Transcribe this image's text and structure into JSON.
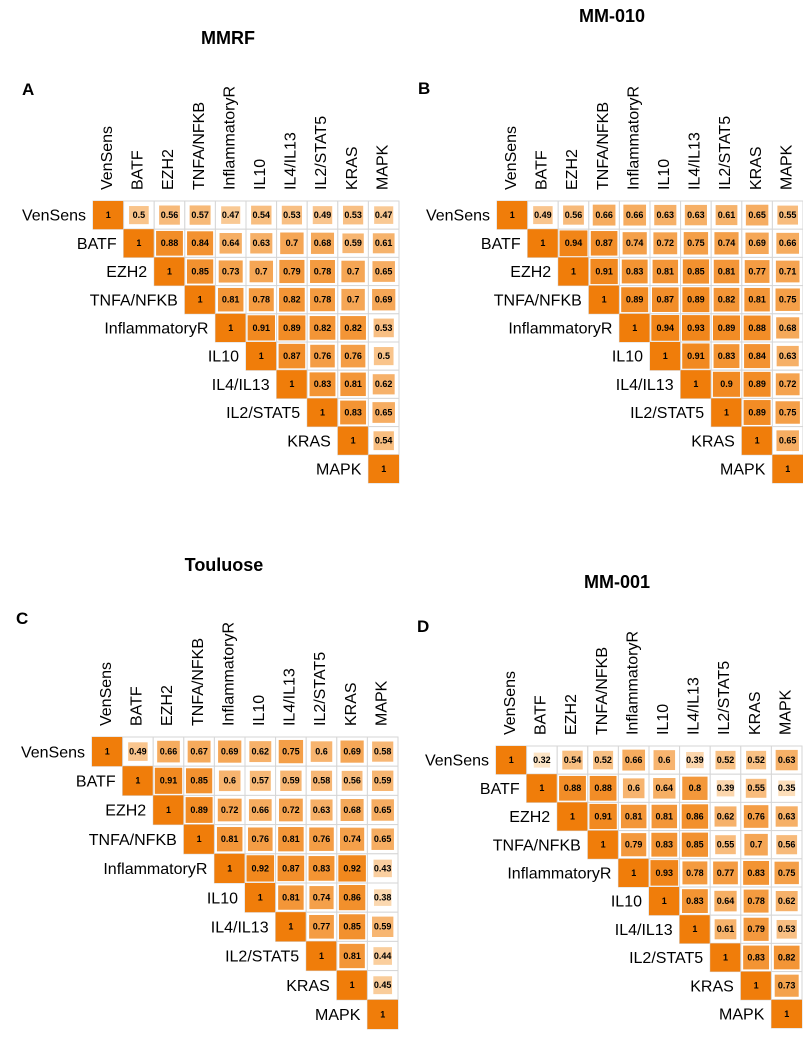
{
  "figure": {
    "panels": [
      {
        "letter": "A",
        "title": "MMRF"
      },
      {
        "letter": "B",
        "title": "MM-010"
      },
      {
        "letter": "C",
        "title": "Touluose"
      },
      {
        "letter": "D",
        "title": "MM-001"
      }
    ]
  },
  "colors": {
    "low": "#fde9cf",
    "high": "#f07d0a",
    "border": "#d6d6d6",
    "text": "#000000"
  },
  "chart_data": [
    {
      "type": "heatmap",
      "title": "MMRF",
      "panel_letter": "A",
      "variables": [
        "VenSens",
        "BATF",
        "EZH2",
        "TNFA/NFKB",
        "InflammatoryR",
        "IL10",
        "IL4/IL13",
        "IL2/STAT5",
        "KRAS",
        "MAPK"
      ],
      "value_range": [
        0,
        1
      ],
      "matrix": [
        [
          "1",
          "0.5",
          "0.56",
          "0.57",
          "0.47",
          "0.54",
          "0.53",
          "0.49",
          "0.53",
          "0.47"
        ],
        [
          "1",
          "0.88",
          "0.84",
          "0.64",
          "0.63",
          "0.7",
          "0.68",
          "0.59",
          "0.61"
        ],
        [
          "1",
          "0.85",
          "0.73",
          "0.7",
          "0.79",
          "0.78",
          "0.7",
          "0.65"
        ],
        [
          "1",
          "0.81",
          "0.78",
          "0.82",
          "0.78",
          "0.7",
          "0.69"
        ],
        [
          "1",
          "0.91",
          "0.89",
          "0.82",
          "0.82",
          "0.53"
        ],
        [
          "1",
          "0.87",
          "0.76",
          "0.76",
          "0.5"
        ],
        [
          "1",
          "0.83",
          "0.81",
          "0.62"
        ],
        [
          "1",
          "0.83",
          "0.65"
        ],
        [
          "1",
          "0.54"
        ],
        [
          "1"
        ]
      ]
    },
    {
      "type": "heatmap",
      "title": "MM-010",
      "panel_letter": "B",
      "variables": [
        "VenSens",
        "BATF",
        "EZH2",
        "TNFA/NFKB",
        "InflammatoryR",
        "IL10",
        "IL4/IL13",
        "IL2/STAT5",
        "KRAS",
        "MAPK"
      ],
      "value_range": [
        0,
        1
      ],
      "matrix": [
        [
          "1",
          "0.49",
          "0.56",
          "0.66",
          "0.66",
          "0.63",
          "0.63",
          "0.61",
          "0.65",
          "0.55"
        ],
        [
          "1",
          "0.94",
          "0.87",
          "0.74",
          "0.72",
          "0.75",
          "0.74",
          "0.69",
          "0.66"
        ],
        [
          "1",
          "0.91",
          "0.83",
          "0.81",
          "0.85",
          "0.81",
          "0.77",
          "0.71"
        ],
        [
          "1",
          "0.89",
          "0.87",
          "0.89",
          "0.82",
          "0.81",
          "0.75"
        ],
        [
          "1",
          "0.94",
          "0.93",
          "0.89",
          "0.88",
          "0.68"
        ],
        [
          "1",
          "0.91",
          "0.83",
          "0.84",
          "0.63"
        ],
        [
          "1",
          "0.9",
          "0.89",
          "0.72"
        ],
        [
          "1",
          "0.89",
          "0.75"
        ],
        [
          "1",
          "0.65"
        ],
        [
          "1"
        ]
      ]
    },
    {
      "type": "heatmap",
      "title": "Touluose",
      "panel_letter": "C",
      "variables": [
        "VenSens",
        "BATF",
        "EZH2",
        "TNFA/NFKB",
        "InflammatoryR",
        "IL10",
        "IL4/IL13",
        "IL2/STAT5",
        "KRAS",
        "MAPK"
      ],
      "value_range": [
        0,
        1
      ],
      "matrix": [
        [
          "1",
          "0.49",
          "0.66",
          "0.67",
          "0.69",
          "0.62",
          "0.75",
          "0.6",
          "0.69",
          "0.58"
        ],
        [
          "1",
          "0.91",
          "0.85",
          "0.6",
          "0.57",
          "0.59",
          "0.58",
          "0.56",
          "0.59"
        ],
        [
          "1",
          "0.89",
          "0.72",
          "0.66",
          "0.72",
          "0.63",
          "0.68",
          "0.65"
        ],
        [
          "1",
          "0.81",
          "0.76",
          "0.81",
          "0.76",
          "0.74",
          "0.65"
        ],
        [
          "1",
          "0.92",
          "0.87",
          "0.83",
          "0.92",
          "0.43"
        ],
        [
          "1",
          "0.81",
          "0.74",
          "0.86",
          "0.38"
        ],
        [
          "1",
          "0.77",
          "0.85",
          "0.59"
        ],
        [
          "1",
          "0.81",
          "0.44"
        ],
        [
          "1",
          "0.45"
        ],
        [
          "1"
        ]
      ]
    },
    {
      "type": "heatmap",
      "title": "MM-001",
      "panel_letter": "D",
      "variables": [
        "VenSens",
        "BATF",
        "EZH2",
        "TNFA/NFKB",
        "InflammatoryR",
        "IL10",
        "IL4/IL13",
        "IL2/STAT5",
        "KRAS",
        "MAPK"
      ],
      "value_range": [
        0,
        1
      ],
      "matrix": [
        [
          "1",
          "0.32",
          "0.54",
          "0.52",
          "0.66",
          "0.6",
          "0.39",
          "0.52",
          "0.52",
          "0.63"
        ],
        [
          "1",
          "0.88",
          "0.88",
          "0.6",
          "0.64",
          "0.8",
          "0.39",
          "0.55",
          "0.35"
        ],
        [
          "1",
          "0.91",
          "0.81",
          "0.81",
          "0.86",
          "0.62",
          "0.76",
          "0.63"
        ],
        [
          "1",
          "0.79",
          "0.83",
          "0.85",
          "0.55",
          "0.7",
          "0.56"
        ],
        [
          "1",
          "0.93",
          "0.78",
          "0.77",
          "0.83",
          "0.75"
        ],
        [
          "1",
          "0.83",
          "0.64",
          "0.78",
          "0.62"
        ],
        [
          "1",
          "0.61",
          "0.79",
          "0.53"
        ],
        [
          "1",
          "0.83",
          "0.82"
        ],
        [
          "1",
          "0.73"
        ],
        [
          "1"
        ]
      ]
    }
  ]
}
